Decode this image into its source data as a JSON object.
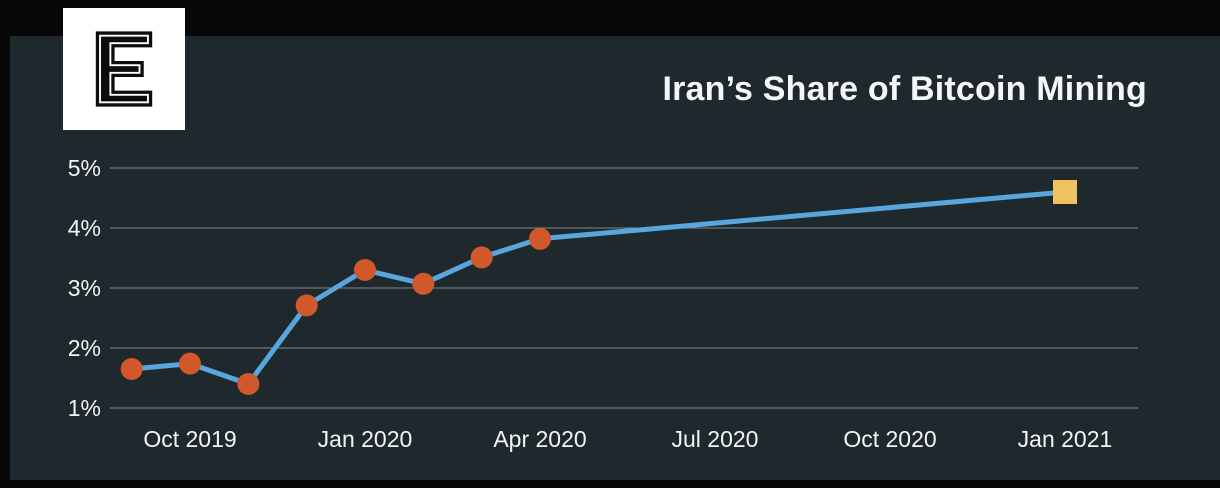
{
  "page": {
    "background": "#1f282d",
    "frame_color": "#070707"
  },
  "header": {
    "logo": {
      "letter": "E",
      "bg": "#ffffff",
      "fg": "#0d0d0d"
    },
    "title": "Iran’s Share of Bitcoin Mining"
  },
  "chart_data": {
    "type": "line",
    "title": "Iran’s Share of Bitcoin Mining",
    "xlabel": "",
    "ylabel": "",
    "ylim": [
      1,
      5
    ],
    "grid": true,
    "legend": "none",
    "line_color": "#58a6dd",
    "marker_color": "#d0582a",
    "estimate_marker_color": "#eec25f",
    "gridline_color": "#98a1a5",
    "text_color": "#f2f4f5",
    "x_unit": "months since Sep 2019",
    "series": [
      {
        "name": "Iran share of Bitcoin mining (%)",
        "points": [
          {
            "month": "Sep 2019",
            "m": 0,
            "value": 1.65,
            "marker": "circle"
          },
          {
            "month": "Oct 2019",
            "m": 1,
            "value": 1.74,
            "marker": "circle"
          },
          {
            "month": "Nov 2019",
            "m": 2,
            "value": 1.4,
            "marker": "circle"
          },
          {
            "month": "Dec 2019",
            "m": 3,
            "value": 2.71,
            "marker": "circle"
          },
          {
            "month": "Jan 2020",
            "m": 4,
            "value": 3.3,
            "marker": "circle"
          },
          {
            "month": "Feb 2020",
            "m": 5,
            "value": 3.07,
            "marker": "circle"
          },
          {
            "month": "Mar 2020",
            "m": 6,
            "value": 3.51,
            "marker": "circle"
          },
          {
            "month": "Apr 2020",
            "m": 7,
            "value": 3.82,
            "marker": "circle"
          },
          {
            "month": "Jan 2021",
            "m": 16,
            "value": 4.6,
            "marker": "square"
          }
        ]
      }
    ],
    "yticks": [
      {
        "label": "1%",
        "value": 1
      },
      {
        "label": "2%",
        "value": 2
      },
      {
        "label": "3%",
        "value": 3
      },
      {
        "label": "4%",
        "value": 4
      },
      {
        "label": "5%",
        "value": 5
      }
    ],
    "xticks": [
      {
        "label": "Oct 2019",
        "m": 1
      },
      {
        "label": "Jan 2020",
        "m": 4
      },
      {
        "label": "Apr 2020",
        "m": 7
      },
      {
        "label": "Jul 2020",
        "m": 10
      },
      {
        "label": "Oct 2020",
        "m": 13
      },
      {
        "label": "Jan 2021",
        "m": 16
      }
    ]
  }
}
